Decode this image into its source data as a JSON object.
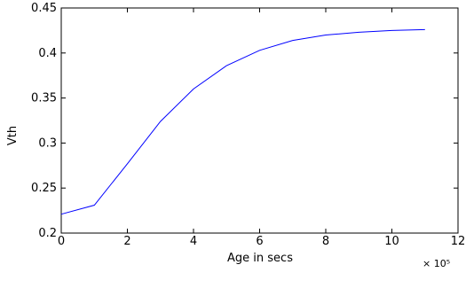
{
  "chart_data": {
    "type": "line",
    "title": "",
    "xlabel": "Age in secs",
    "ylabel": "Vth",
    "x_multiplier": "× 10⁵",
    "xlim": [
      0,
      12
    ],
    "ylim": [
      0.2,
      0.45
    ],
    "xticks": [
      "0",
      "2",
      "4",
      "6",
      "8",
      "10",
      "12"
    ],
    "yticks": [
      "0.2",
      "0.25",
      "0.3",
      "0.35",
      "0.4",
      "0.45"
    ],
    "grid": false,
    "line_color": "#0000ff",
    "series": [
      {
        "x": [
          0,
          1,
          2,
          3,
          4,
          5,
          6,
          7,
          8,
          9,
          10,
          11
        ],
        "values": [
          0.221,
          0.231,
          0.277,
          0.324,
          0.36,
          0.386,
          0.403,
          0.414,
          0.42,
          0.423,
          0.425,
          0.426
        ]
      }
    ]
  }
}
